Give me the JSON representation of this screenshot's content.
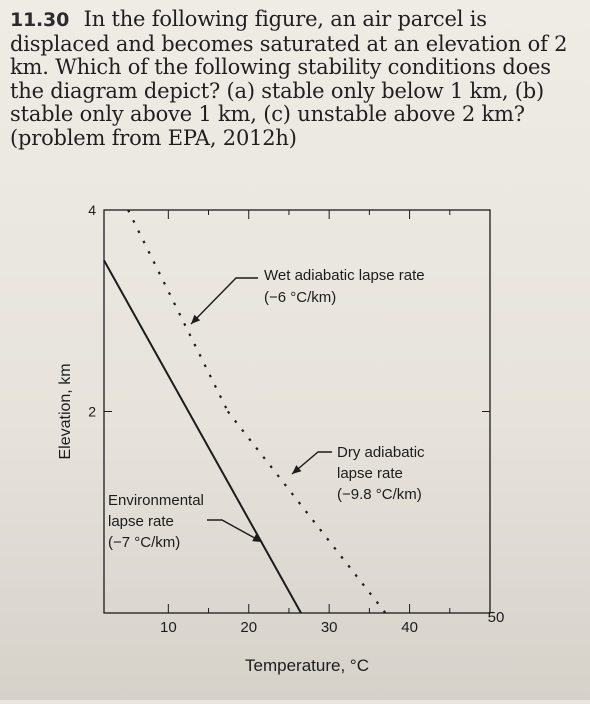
{
  "problem": {
    "number": "11.30",
    "text": "In the following figure, an air parcel is displaced and becomes saturated at an elevation of 2 km. Which of the following stability conditions does the diagram depict? (a) stable only below 1 km, (b) stable only above 1 km, (c) unstable above 2 km? (problem from EPA, 2012h)"
  },
  "chart_data": {
    "type": "line",
    "xlabel": "Temperature, °C",
    "ylabel": "Elevation, km",
    "x_ticks": [
      "10",
      "20",
      "30",
      "40",
      "50"
    ],
    "y_ticks": [
      "4",
      "2"
    ],
    "xlim": [
      2,
      50
    ],
    "ylim": [
      0,
      4
    ],
    "grid": false,
    "series": [
      {
        "name": "Environmental lapse rate (−7 °C/km)",
        "style": "solid",
        "points": [
          [
            2,
            3.5
          ],
          [
            26.5,
            0
          ]
        ]
      },
      {
        "name": "Dry adiabatic lapse rate (−9.8 °C/km)",
        "style": "dashed",
        "points": [
          [
            17.4,
            2
          ],
          [
            37,
            0
          ]
        ]
      },
      {
        "name": "Wet adiabatic lapse rate (−6 °C/km)",
        "style": "dashed",
        "points": [
          [
            5,
            4
          ],
          [
            17.4,
            2
          ]
        ]
      }
    ],
    "annotations": {
      "wet": [
        "Wet adiabatic lapse rate",
        "(−6 °C/km)"
      ],
      "dry": [
        "Dry adiabatic",
        "lapse rate",
        "(−9.8 °C/km)"
      ],
      "env": [
        "Environmental",
        "lapse rate",
        "(−7 °C/km)"
      ]
    }
  },
  "colors": {
    "ink": "#1c1c1c",
    "page": "#ece9e3"
  }
}
